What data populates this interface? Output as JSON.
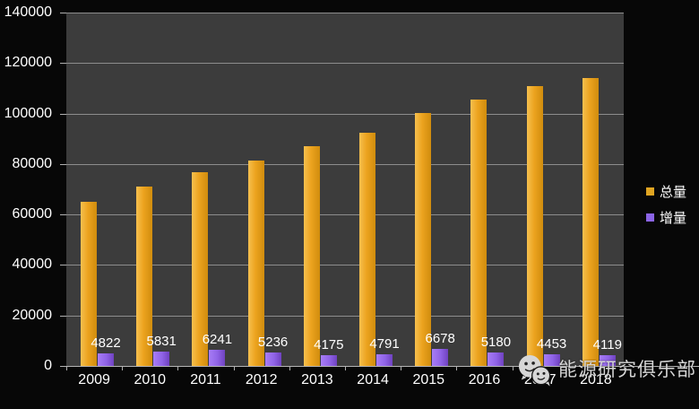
{
  "chart_data": {
    "type": "bar",
    "categories": [
      "2009",
      "2010",
      "2011",
      "2012",
      "2013",
      "2014",
      "2015",
      "2016",
      "2017",
      "2018"
    ],
    "series": [
      {
        "name": "总量",
        "values": [
          64900,
          71000,
          76800,
          81500,
          87200,
          92300,
          100300,
          105700,
          110800,
          114000
        ],
        "color": "#e0a522",
        "show_labels": false
      },
      {
        "name": "增量",
        "values": [
          4822,
          5831,
          6241,
          5236,
          4175,
          4791,
          6678,
          5180,
          4453,
          4119
        ],
        "color": "#8b64e6",
        "show_labels": true
      }
    ],
    "data_labels": [
      "4822",
      "5831",
      "6241",
      "5236",
      "4175",
      "4791",
      "6678",
      "5180",
      "4453",
      "4119"
    ],
    "ylim": [
      0,
      140000
    ],
    "ytick_step": 20000,
    "ytick_labels": [
      "0",
      "20000",
      "40000",
      "60000",
      "80000",
      "100000",
      "120000",
      "140000"
    ],
    "grid": true,
    "legend_position": "right",
    "title": "",
    "xlabel": "",
    "ylabel": ""
  },
  "legend": {
    "items": [
      {
        "label": "总量",
        "color": "#e0a522"
      },
      {
        "label": "增量",
        "color": "#8b64e6"
      }
    ]
  },
  "watermark": {
    "icon": "wechat-icon",
    "text": "能源研究俱乐部"
  },
  "colors": {
    "background": "#070707",
    "plot_background": "#3c3c3c",
    "gridline": "#a8a8a8",
    "axis": "#b4b4b4",
    "text": "#ffffff",
    "bar_total": "#eca31f",
    "bar_increment": "#8f63e6",
    "watermark_text": "#d6d6d6"
  }
}
